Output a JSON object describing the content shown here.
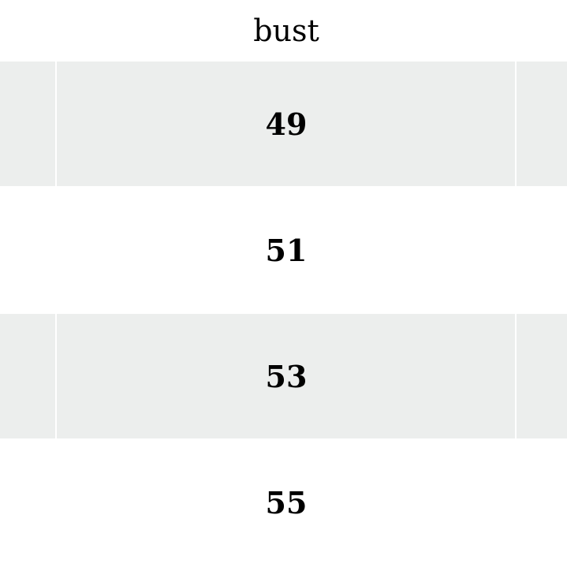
{
  "table": {
    "column_header": "bust",
    "rows": [
      "49",
      "51",
      "53",
      "55"
    ],
    "stripe_color": "#eceeed"
  }
}
